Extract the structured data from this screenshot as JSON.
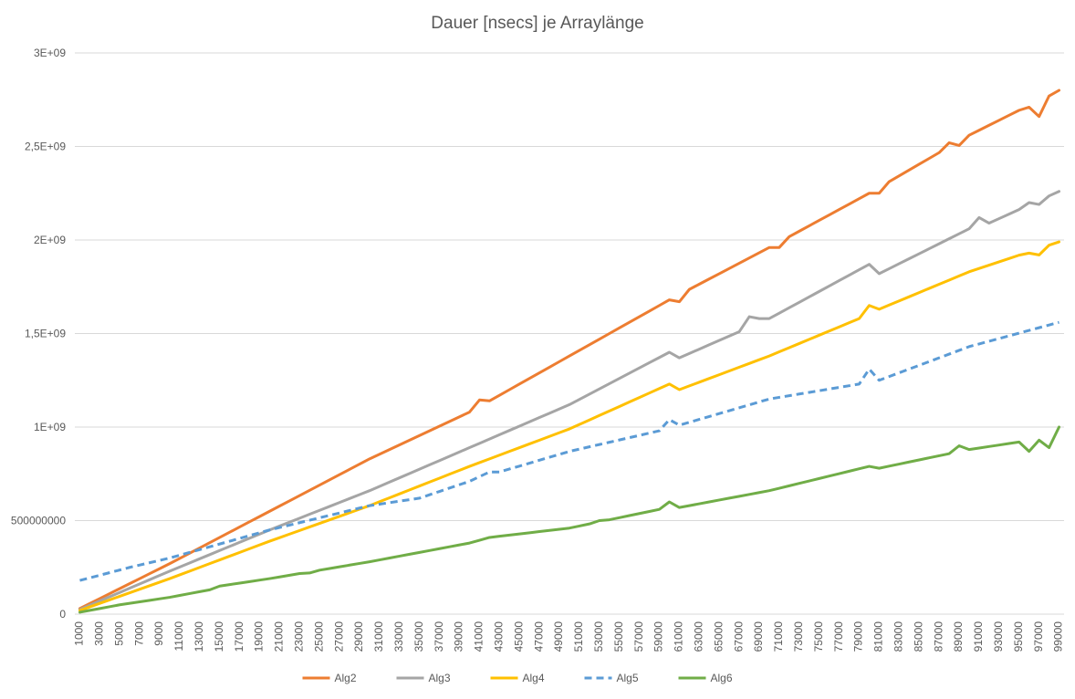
{
  "chart_data": {
    "type": "line",
    "title": "Dauer [nsecs] je Arraylänge",
    "xlabel": "",
    "ylabel": "",
    "ylim": [
      0,
      3000000000
    ],
    "yticks": [
      0,
      500000000,
      1000000000,
      1500000000,
      2000000000,
      2500000000,
      3000000000
    ],
    "ytick_labels": [
      "0",
      "500000000",
      "1E+09",
      "1,5E+09",
      "2E+09",
      "2,5E+09",
      "3E+09"
    ],
    "x_start": 1000,
    "x_step": 1000,
    "x_count": 99,
    "xtick_labels": [
      "1000",
      "3000",
      "5000",
      "7000",
      "9000",
      "11000",
      "13000",
      "15000",
      "17000",
      "19000",
      "21000",
      "23000",
      "25000",
      "27000",
      "29000",
      "31000",
      "33000",
      "35000",
      "37000",
      "39000",
      "41000",
      "43000",
      "45000",
      "47000",
      "49000",
      "51000",
      "53000",
      "55000",
      "57000",
      "59000",
      "61000",
      "63000",
      "65000",
      "67000",
      "69000",
      "71000",
      "73000",
      "75000",
      "77000",
      "79000",
      "81000",
      "83000",
      "85000",
      "87000",
      "89000",
      "91000",
      "93000",
      "95000",
      "97000",
      "99000"
    ],
    "grid": "horizontal",
    "legend_position": "bottom",
    "series": [
      {
        "name": "Alg2",
        "color": "#ED7D31",
        "dashed": false,
        "anchors": [
          [
            1000,
            30000000
          ],
          [
            10000,
            270000000
          ],
          [
            20000,
            550000000
          ],
          [
            30000,
            830000000
          ],
          [
            40000,
            1080000000
          ],
          [
            50000,
            1380000000
          ],
          [
            60000,
            1680000000
          ],
          [
            70000,
            1960000000
          ],
          [
            80000,
            2250000000
          ],
          [
            90000,
            2560000000
          ],
          [
            99000,
            2800000000
          ]
        ],
        "overrides": {
          "41000": 1145000000,
          "42000": 1140000000,
          "61000": 1670000000,
          "71000": 1960000000,
          "81000": 2250000000,
          "88000": 2520000000,
          "89000": 2505000000,
          "97000": 2660000000,
          "96000": 2710000000,
          "98000": 2770000000
        }
      },
      {
        "name": "Alg3",
        "color": "#A5A5A5",
        "dashed": false,
        "anchors": [
          [
            1000,
            25000000
          ],
          [
            10000,
            230000000
          ],
          [
            20000,
            450000000
          ],
          [
            30000,
            660000000
          ],
          [
            40000,
            890000000
          ],
          [
            50000,
            1120000000
          ],
          [
            60000,
            1400000000
          ],
          [
            61000,
            1370000000
          ],
          [
            70000,
            1580000000
          ],
          [
            80000,
            1870000000
          ],
          [
            81000,
            1820000000
          ],
          [
            90000,
            2060000000
          ],
          [
            91000,
            2120000000
          ],
          [
            92000,
            2090000000
          ],
          [
            99000,
            2260000000
          ]
        ],
        "overrides": {
          "68000": 1590000000,
          "69000": 1580000000,
          "96000": 2200000000,
          "97000": 2190000000
        }
      },
      {
        "name": "Alg4",
        "color": "#FFC000",
        "dashed": false,
        "anchors": [
          [
            1000,
            20000000
          ],
          [
            10000,
            190000000
          ],
          [
            20000,
            390000000
          ],
          [
            30000,
            580000000
          ],
          [
            40000,
            790000000
          ],
          [
            50000,
            990000000
          ],
          [
            60000,
            1230000000
          ],
          [
            61000,
            1200000000
          ],
          [
            70000,
            1380000000
          ],
          [
            79000,
            1580000000
          ],
          [
            80000,
            1650000000
          ],
          [
            81000,
            1630000000
          ],
          [
            90000,
            1830000000
          ],
          [
            99000,
            1990000000
          ]
        ],
        "overrides": {
          "96000": 1930000000,
          "97000": 1920000000
        }
      },
      {
        "name": "Alg5",
        "color": "#5B9BD5",
        "dashed": true,
        "anchors": [
          [
            1000,
            180000000
          ],
          [
            6000,
            250000000
          ],
          [
            10000,
            300000000
          ],
          [
            20000,
            450000000
          ],
          [
            30000,
            580000000
          ],
          [
            35000,
            620000000
          ],
          [
            40000,
            710000000
          ],
          [
            42000,
            760000000
          ],
          [
            43000,
            760000000
          ],
          [
            50000,
            870000000
          ],
          [
            59000,
            980000000
          ],
          [
            60000,
            1040000000
          ],
          [
            61000,
            1010000000
          ],
          [
            70000,
            1150000000
          ],
          [
            79000,
            1230000000
          ],
          [
            80000,
            1310000000
          ],
          [
            81000,
            1250000000
          ],
          [
            90000,
            1430000000
          ],
          [
            99000,
            1560000000
          ]
        ],
        "overrides": {}
      },
      {
        "name": "Alg6",
        "color": "#70AD47",
        "dashed": false,
        "anchors": [
          [
            1000,
            10000000
          ],
          [
            5000,
            50000000
          ],
          [
            10000,
            90000000
          ],
          [
            14000,
            130000000
          ],
          [
            15000,
            150000000
          ],
          [
            20000,
            190000000
          ],
          [
            30000,
            280000000
          ],
          [
            40000,
            380000000
          ],
          [
            42000,
            410000000
          ],
          [
            50000,
            460000000
          ],
          [
            59000,
            560000000
          ],
          [
            60000,
            600000000
          ],
          [
            61000,
            570000000
          ],
          [
            70000,
            660000000
          ],
          [
            80000,
            790000000
          ],
          [
            81000,
            780000000
          ],
          [
            90000,
            880000000
          ],
          [
            95000,
            920000000
          ],
          [
            96000,
            870000000
          ],
          [
            97000,
            930000000
          ],
          [
            98000,
            890000000
          ],
          [
            99000,
            1000000000
          ]
        ],
        "overrides": {
          "24000": 220000000,
          "53000": 500000000,
          "89000": 900000000
        }
      }
    ]
  }
}
